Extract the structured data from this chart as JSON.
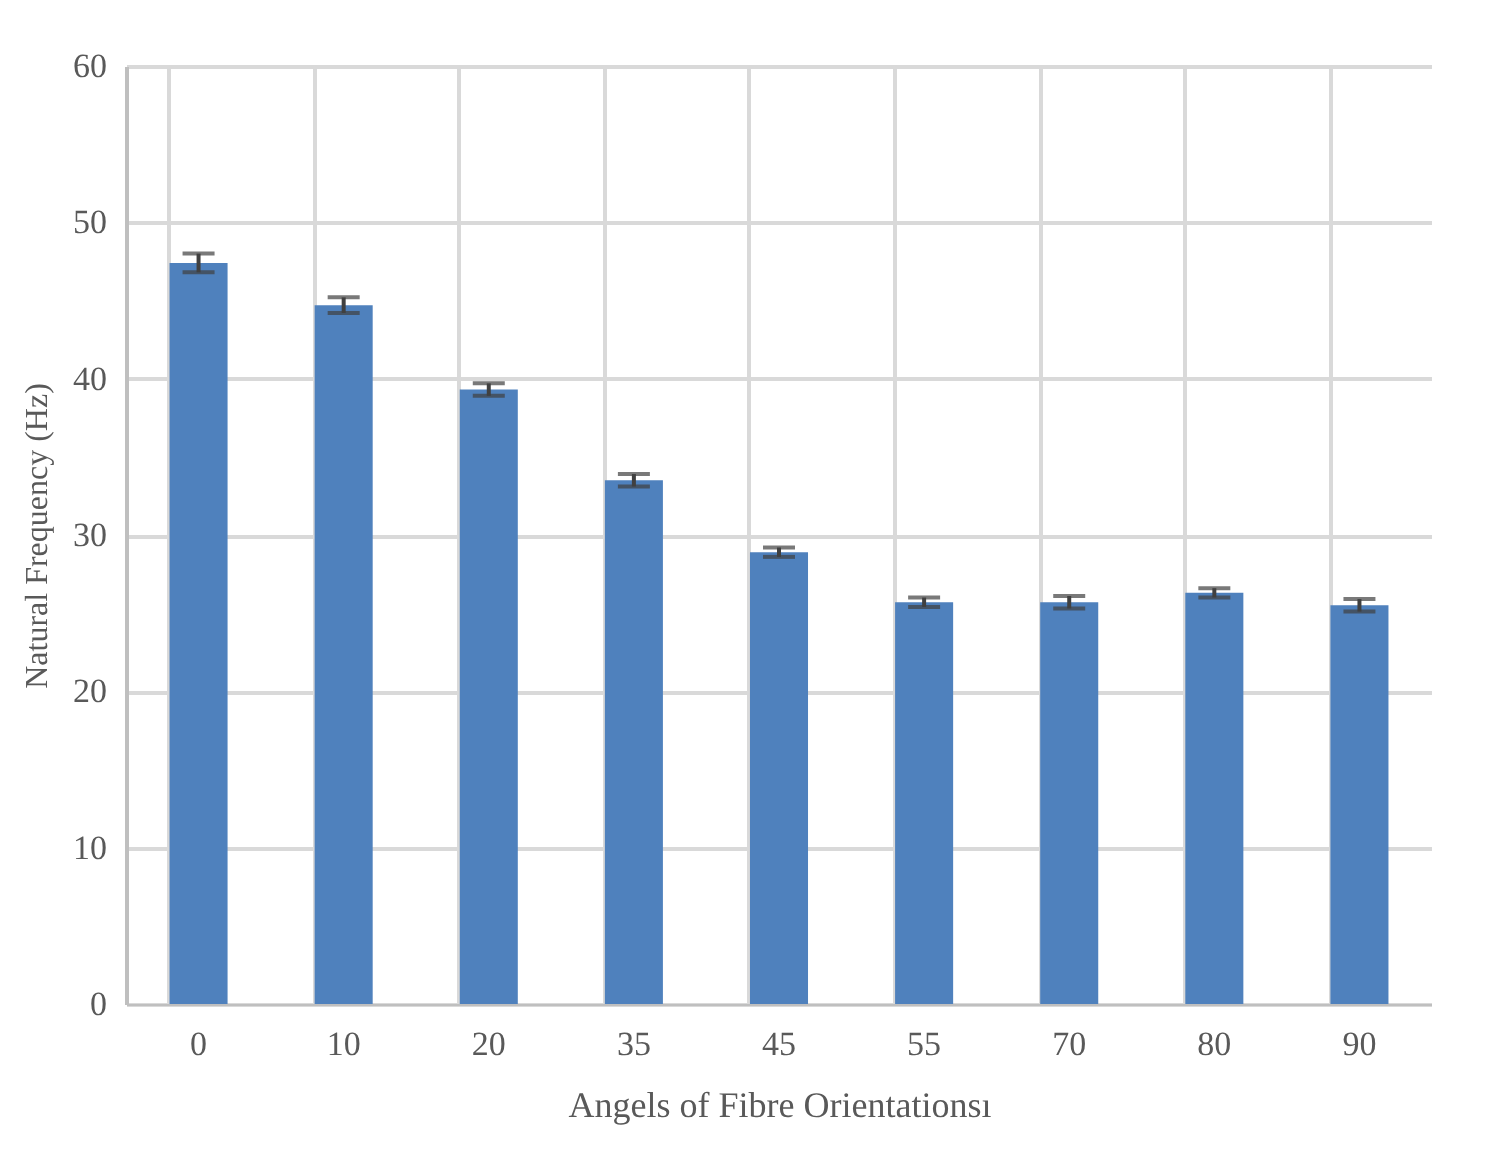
{
  "chart_data": {
    "type": "bar",
    "xlabel": "Angels of Fibre Orientationsı",
    "ylabel": "Natural Frequency (Hz)",
    "categories": [
      "0",
      "10",
      "20",
      "35",
      "45",
      "55",
      "70",
      "80",
      "90"
    ],
    "values": [
      47.4,
      44.7,
      39.3,
      33.5,
      28.9,
      25.7,
      25.7,
      26.3,
      25.5
    ],
    "errors": [
      0.6,
      0.5,
      0.4,
      0.4,
      0.3,
      0.3,
      0.4,
      0.3,
      0.4
    ],
    "color": "#4f81bd",
    "ylim": [
      0,
      60
    ],
    "yticks": [
      0,
      10,
      20,
      30,
      40,
      50,
      60
    ],
    "grid": true
  }
}
